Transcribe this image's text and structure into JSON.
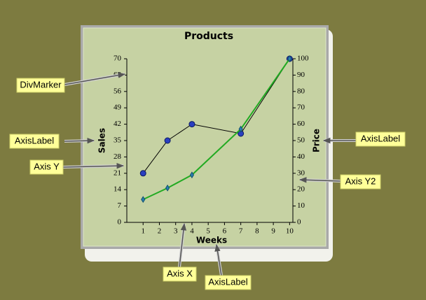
{
  "chart_data": {
    "type": "line",
    "title": "Products",
    "x_label": "Weeks",
    "y_label": "Sales",
    "y2_label": "Price",
    "xlim": [
      0,
      10.2
    ],
    "xticks": [
      1,
      2,
      3,
      4,
      5,
      6,
      7,
      8,
      9,
      10
    ],
    "ylim": [
      0,
      70
    ],
    "yticks": [
      0,
      7,
      14,
      21,
      28,
      35,
      42,
      49,
      56,
      63,
      70
    ],
    "y2lim": [
      0,
      100
    ],
    "y2ticks": [
      0,
      10,
      20,
      30,
      40,
      50,
      60,
      70,
      80,
      90,
      100
    ],
    "series": [
      {
        "color": "#000000",
        "marker": "circle",
        "x": [
          1,
          2.5,
          4,
          7,
          10
        ],
        "values": [
          21,
          35,
          42,
          38,
          70
        ]
      },
      {
        "color": "#22aa22",
        "marker": "diamond",
        "axis": "y2",
        "x": [
          1,
          2.5,
          4,
          7,
          10
        ],
        "values": [
          14,
          21,
          29,
          57,
          100
        ]
      }
    ],
    "annotations": [
      "DivMarker",
      "AxisLabel",
      "Axis Y",
      "AxisLabel",
      "Axis Y2",
      "Axis X",
      "AxisLabel"
    ]
  }
}
